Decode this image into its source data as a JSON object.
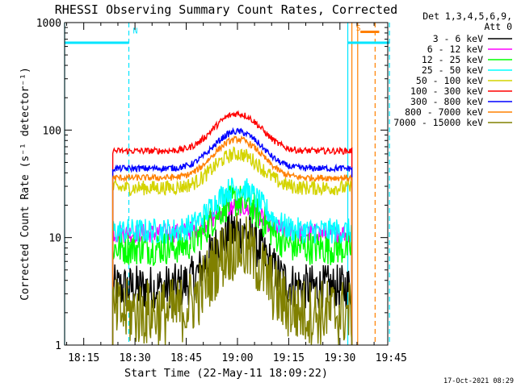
{
  "chart_data": {
    "type": "line",
    "title": "RHESSI Observing Summary Count Rates, Corrected",
    "xlabel": "Start Time (22-May-11 18:09:22)",
    "ylabel": "Corrected Count Rate (s⁻¹ detector⁻¹)",
    "yscale": "log",
    "xlim_min": [
      9.4,
      104
    ],
    "ylim": [
      1,
      1000
    ],
    "x_ticks": [
      {
        "label": "18:15",
        "min": 15
      },
      {
        "label": "18:30",
        "min": 30
      },
      {
        "label": "18:45",
        "min": 45
      },
      {
        "label": "19:00",
        "min": 60
      },
      {
        "label": "19:15",
        "min": 75
      },
      {
        "label": "19:30",
        "min": 90
      },
      {
        "label": "19:45",
        "min": 105
      }
    ],
    "y_ticks": [
      {
        "label": "1",
        "v": 1
      },
      {
        "label": "10",
        "v": 10
      },
      {
        "label": "100",
        "v": 100
      },
      {
        "label": "1000",
        "v": 1000
      }
    ],
    "legend_header": [
      "Det 1,3,4,5,6,9,",
      "Att 0"
    ],
    "legend_position": "right",
    "footer": "17-Oct-2021 08:29",
    "data_window_min": [
      23.5,
      93.5
    ],
    "peak_time_min": 60,
    "series": [
      {
        "name": "3 - 6 keV",
        "color": "#000000",
        "base": 3.4,
        "peak": 11.5,
        "min": 2.2,
        "noise": 0.22
      },
      {
        "name": "6 - 12 keV",
        "color": "#ff00ff",
        "base": 11.0,
        "peak": 19.5,
        "min": 7.0,
        "noise": 0.09
      },
      {
        "name": "12 - 25 keV",
        "color": "#00ff00",
        "base": 8.0,
        "peak": 22.0,
        "min": 4.5,
        "noise": 0.16
      },
      {
        "name": "25 - 50 keV",
        "color": "#00ffff",
        "base": 11.5,
        "peak": 29.0,
        "min": 7.5,
        "noise": 0.12
      },
      {
        "name": "50 - 100 keV",
        "color": "#d4d400",
        "base": 29.0,
        "peak": 60.0,
        "min": 22.0,
        "noise": 0.07
      },
      {
        "name": "100 - 300 keV",
        "color": "#ff0000",
        "base": 64.0,
        "peak": 142.0,
        "min": 50.0,
        "noise": 0.03
      },
      {
        "name": "300 - 800 keV",
        "color": "#0000ff",
        "base": 44.0,
        "peak": 97.0,
        "min": 35.0,
        "noise": 0.03
      },
      {
        "name": "800 - 7000 keV",
        "color": "#ff8000",
        "base": 36.0,
        "peak": 82.0,
        "min": 28.0,
        "noise": 0.03
      },
      {
        "name": "7000 - 15000 keV",
        "color": "#808000",
        "base": 2.0,
        "peak": 8.2,
        "min": 1.0,
        "noise": 0.32
      }
    ],
    "annotations": [
      {
        "label": "N",
        "color": "#00e5ff",
        "x_min": 28.2,
        "style": "dashed",
        "text_at_y": 850
      },
      {
        "label": "S",
        "color": "#ff8000",
        "x_min": 93.5,
        "style": "solid",
        "text_at_y": 900
      }
    ],
    "markers": [
      {
        "name": "night-start",
        "color": "#00e5ff",
        "x_min": 9.4,
        "style": "solid"
      },
      {
        "name": "night-end",
        "color": "#00e5ff",
        "x_min": 28.2,
        "style": "dashed"
      },
      {
        "name": "night2-start",
        "color": "#00e5ff",
        "x_min": 92.3,
        "style": "solid"
      },
      {
        "name": "night2-end",
        "color": "#00e5ff",
        "x_min": 104.5,
        "style": "dashed"
      },
      {
        "name": "saa-start",
        "color": "#ff8000",
        "x_min": 95.2,
        "style": "solid"
      },
      {
        "name": "saa-end",
        "color": "#ff8000",
        "x_min": 100.3,
        "style": "dashed"
      },
      {
        "name": "att-change",
        "color": "#ff8000",
        "x_min": 93.5,
        "style": "solid"
      }
    ],
    "bars": [
      {
        "name": "night-bar",
        "color": "#00e5ff",
        "x_from": 9.4,
        "x_to": 28.2,
        "y": 650
      },
      {
        "name": "night2-bar",
        "color": "#00e5ff",
        "x_from": 92.3,
        "x_to": 104.5,
        "y": 650
      },
      {
        "name": "saa-bar",
        "color": "#ff8000",
        "x_from": 96.0,
        "x_to": 101.5,
        "y": 820
      }
    ]
  }
}
